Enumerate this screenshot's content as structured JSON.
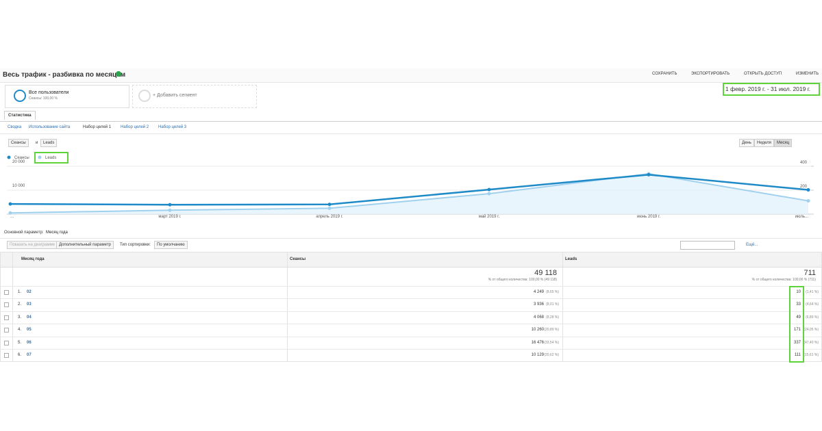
{
  "header": {
    "title": "Весь трафик - разбивка по месяцам",
    "actions": [
      "СОХРАНИТЬ",
      "ЭКСПОРТИРОВАТЬ",
      "ОТКРЫТЬ ДОСТУП",
      "ИЗМЕНИТЬ"
    ]
  },
  "date_range": "1 февр. 2019 г. - 31 июл. 2019 г.",
  "segments": [
    {
      "name": "Все пользователи",
      "detail": "Сеансы: 100,00 %"
    },
    {
      "name": "+ Добавить сегмент"
    }
  ],
  "tabs": [
    "Статистика"
  ],
  "subtabs": [
    "Сводка",
    "Использование сайта",
    "Набор целей 1",
    "Набор целей 2",
    "Набор целей 3"
  ],
  "metric_selector": {
    "first": "Сеансы",
    "joiner": "и",
    "second": "Leads"
  },
  "granularity": [
    "День",
    "Неделя",
    "Месяц"
  ],
  "chart_data": {
    "type": "line",
    "categories": [
      "...",
      "март 2019 г.",
      "апрель 2019 г.",
      "май 2019 г.",
      "июнь 2019 г.",
      "июль..."
    ],
    "series": [
      {
        "name": "Сеансы",
        "color": "#1f8ac8",
        "values": [
          4249,
          3936,
          4068,
          10260,
          16476,
          10129
        ]
      },
      {
        "name": "Leads",
        "color": "#9fd0ee",
        "axis": "y2",
        "values": [
          10,
          33,
          49,
          171,
          337,
          111
        ]
      }
    ],
    "ylim": [
      0,
      20000
    ],
    "yticks": [
      {
        "value": 10000,
        "label": "10 000"
      },
      {
        "value": 20000,
        "label": "20 000"
      }
    ],
    "y2lim": [
      0,
      400
    ],
    "y2ticks": [
      200,
      400
    ],
    "grid": true
  },
  "table": {
    "primary_dimension_label": "Основной параметр:",
    "primary_dimension": "Месяц года",
    "controls": {
      "plot": "Показать на диаграмме",
      "secondary": "Дополнительный параметр",
      "sort_label": "Тип сортировки:",
      "sort": "По умолчанию",
      "more": "Ещё..."
    },
    "columns": [
      "Месяц года",
      "Сеансы",
      "Leads"
    ],
    "totals": [
      {
        "value": "49 118",
        "note": "% от общего количества: 100,00 % (49 118)"
      },
      {
        "value": "711",
        "note": "% от общего количества: 100,00 % (711)"
      }
    ],
    "rows": [
      [
        "1.",
        "02",
        "4 249",
        "(8,65 %)",
        "10",
        "(1,41 %)"
      ],
      [
        "2.",
        "03",
        "3 936",
        "(8,01 %)",
        "33",
        "(4,64 %)"
      ],
      [
        "3.",
        "04",
        "4 068",
        "(8,28 %)",
        "49",
        "(6,89 %)"
      ],
      [
        "4.",
        "05",
        "10 260",
        "(20,89 %)",
        "171",
        "(24,05 %)"
      ],
      [
        "5.",
        "06",
        "16 476",
        "(33,54 %)",
        "337",
        "(47,40 %)"
      ],
      [
        "6.",
        "07",
        "10 129",
        "(20,62 %)",
        "111",
        "(15,61 %)"
      ]
    ]
  }
}
